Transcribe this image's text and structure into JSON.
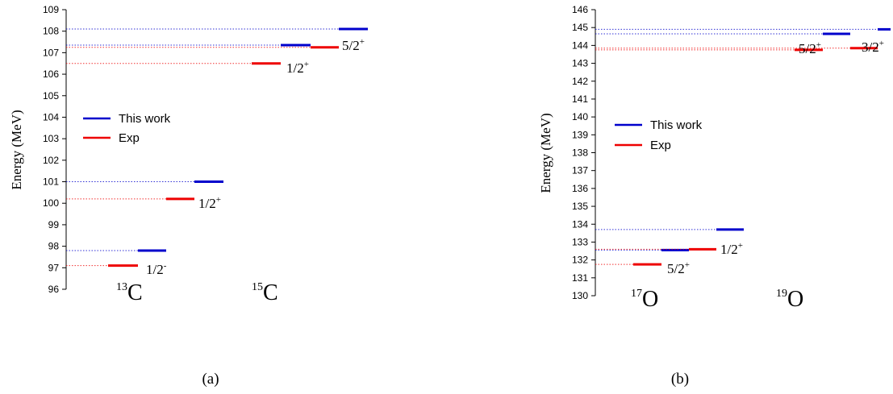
{
  "chart_data": [
    {
      "type": "level-diagram",
      "panel_label": "(a)",
      "ylabel": "Energy (MeV)",
      "ylim": [
        96,
        109
      ],
      "ytick_step": 1,
      "legend": [
        {
          "label": "This work",
          "color": "#0000cc"
        },
        {
          "label": "Exp",
          "color": "#ee0000"
        }
      ],
      "levels": [
        {
          "series": "Exp",
          "energy": 97.1,
          "nucleus": "13C",
          "state": "1/2",
          "parity": "-"
        },
        {
          "series": "This work",
          "energy": 97.8,
          "nucleus": "13C"
        },
        {
          "series": "Exp",
          "energy": 100.2,
          "nucleus": "13C",
          "state": "1/2",
          "parity": "+"
        },
        {
          "series": "This work",
          "energy": 101.0,
          "nucleus": "13C"
        },
        {
          "series": "Exp",
          "energy": 106.5,
          "nucleus": "15C",
          "state": "1/2",
          "parity": "+"
        },
        {
          "series": "This work",
          "energy": 107.35,
          "nucleus": "15C"
        },
        {
          "series": "Exp",
          "energy": 107.25,
          "nucleus": "15C",
          "state": "5/2",
          "parity": "+"
        },
        {
          "series": "This work",
          "energy": 108.1,
          "nucleus": "15C"
        }
      ],
      "nuclei": [
        {
          "mass": "13",
          "symbol": "C"
        },
        {
          "mass": "15",
          "symbol": "C"
        }
      ]
    },
    {
      "type": "level-diagram",
      "panel_label": "(b)",
      "ylabel": "Energy (MeV)",
      "ylim": [
        130,
        146
      ],
      "ytick_step": 1,
      "legend": [
        {
          "label": "This work",
          "color": "#0000cc"
        },
        {
          "label": "Exp",
          "color": "#ee0000"
        }
      ],
      "levels": [
        {
          "series": "Exp",
          "energy": 131.75,
          "nucleus": "17O",
          "state": "5/2",
          "parity": "+"
        },
        {
          "series": "This work",
          "energy": 132.55,
          "nucleus": "17O"
        },
        {
          "series": "Exp",
          "energy": 132.6,
          "nucleus": "17O",
          "state": "1/2",
          "parity": "+"
        },
        {
          "series": "This work",
          "energy": 133.7,
          "nucleus": "17O"
        },
        {
          "series": "Exp",
          "energy": 143.75,
          "nucleus": "19O",
          "state": "5/2",
          "parity": "+"
        },
        {
          "series": "This work",
          "energy": 144.65,
          "nucleus": "19O"
        },
        {
          "series": "Exp",
          "energy": 143.85,
          "nucleus": "19O",
          "state": "3/2",
          "parity": "+"
        },
        {
          "series": "This work",
          "energy": 144.9,
          "nucleus": "19O"
        }
      ],
      "nuclei": [
        {
          "mass": "17",
          "symbol": "O"
        },
        {
          "mass": "19",
          "symbol": "O"
        }
      ]
    }
  ]
}
